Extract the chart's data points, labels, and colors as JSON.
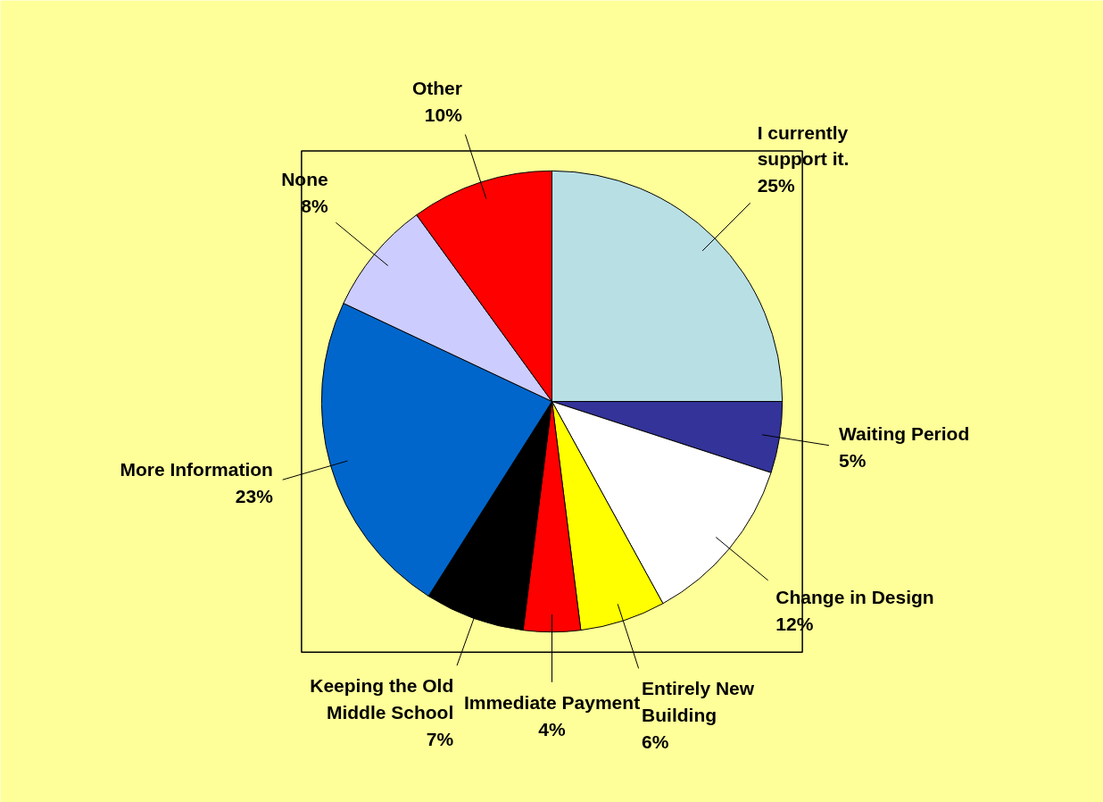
{
  "chart_data": {
    "type": "pie",
    "categories": [
      "I currently support it.",
      "Waiting Period",
      "Change in Design",
      "Entirely New Building",
      "Immediate Payment",
      "Keeping the Old Middle School",
      "More Information",
      "None",
      "Other"
    ],
    "values": [
      25,
      5,
      12,
      6,
      4,
      7,
      23,
      8,
      10
    ],
    "value_labels": [
      "25%",
      "5%",
      "12%",
      "6%",
      "4%",
      "7%",
      "23%",
      "8%",
      "10%"
    ],
    "colors": [
      "#b8dfe4",
      "#333399",
      "#ffffff",
      "#ffff00",
      "#ff0000",
      "#000000",
      "#0066cc",
      "#ccccff",
      "#ff0000"
    ]
  }
}
